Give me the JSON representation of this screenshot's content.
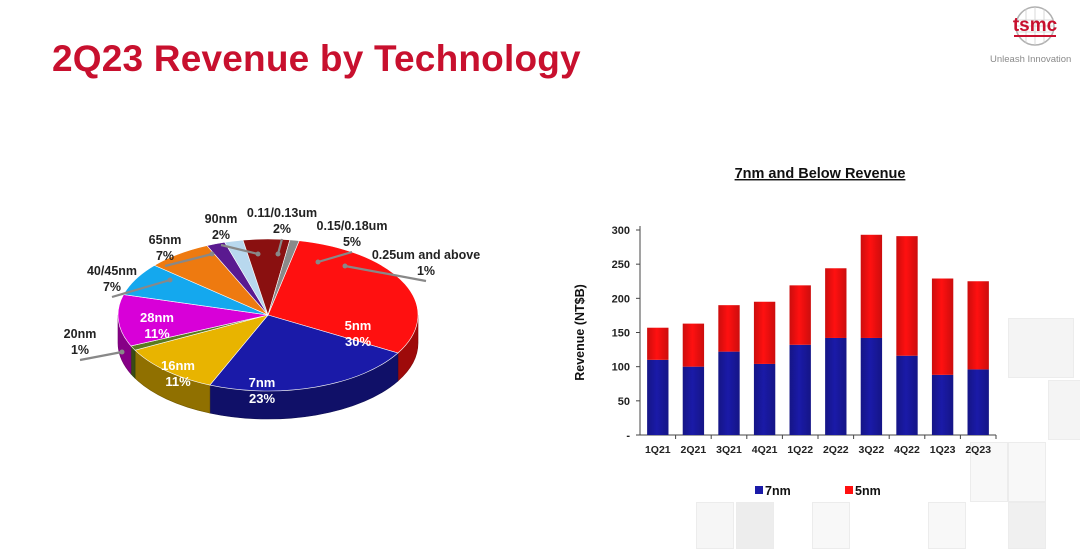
{
  "header": {
    "title": "2Q23 Revenue by Technology",
    "logo_text": "tsmc",
    "tagline": "Unleash Innovation"
  },
  "colors": {
    "title_red": "#c8102e",
    "n5_red": "#ff1010",
    "n7_blue": "#1a1aa8"
  },
  "chart_data": [
    {
      "type": "pie",
      "slices": [
        {
          "label": "5nm",
          "percent": "30%",
          "value": 30,
          "color": "#ff1010"
        },
        {
          "label": "7nm",
          "percent": "23%",
          "value": 23,
          "color": "#1a1aa8"
        },
        {
          "label": "16nm",
          "percent": "11%",
          "value": 11,
          "color": "#e8b400"
        },
        {
          "label": "20nm",
          "percent": "1%",
          "value": 1,
          "color": "#5a7a20"
        },
        {
          "label": "28nm",
          "percent": "11%",
          "value": 11,
          "color": "#d800d8"
        },
        {
          "label": "40/45nm",
          "percent": "7%",
          "value": 7,
          "color": "#14a8ee"
        },
        {
          "label": "65nm",
          "percent": "7%",
          "value": 7,
          "color": "#ee7a10"
        },
        {
          "label": "90nm",
          "percent": "2%",
          "value": 2,
          "color": "#5a1a90"
        },
        {
          "label": "0.11/0.13um",
          "percent": "2%",
          "value": 2,
          "color": "#b8d8ee"
        },
        {
          "label": "0.15/0.18um",
          "percent": "5%",
          "value": 5,
          "color": "#8a1010"
        },
        {
          "label": "0.25um and above",
          "percent": "1%",
          "value": 1,
          "color": "#8a8a8a"
        }
      ]
    },
    {
      "type": "bar",
      "stacked": true,
      "title": "7nm and Below Revenue",
      "ylabel": "Revenue (NT$B)",
      "ylim": [
        0,
        300
      ],
      "yticks": [
        "-",
        "50",
        "100",
        "150",
        "200",
        "250",
        "300"
      ],
      "categories": [
        "1Q21",
        "2Q21",
        "3Q21",
        "4Q21",
        "1Q22",
        "2Q22",
        "3Q22",
        "4Q22",
        "1Q23",
        "2Q23"
      ],
      "series": [
        {
          "name": "7nm",
          "color": "#1a1aa8",
          "values": [
            110,
            100,
            122,
            104,
            132,
            142,
            142,
            116,
            88,
            96
          ]
        },
        {
          "name": "5nm",
          "color": "#ff1010",
          "values": [
            47,
            63,
            68,
            91,
            87,
            102,
            151,
            175,
            141,
            129
          ]
        }
      ],
      "legend_position": "bottom"
    }
  ]
}
